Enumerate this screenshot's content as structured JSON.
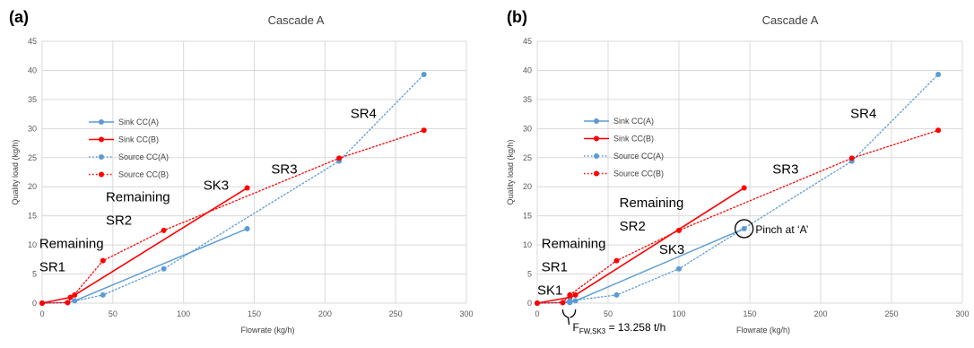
{
  "chart_data": [
    {
      "type": "line",
      "panel_label": "(a)",
      "title": "Cascade A",
      "xlabel": "Flowrate (kg/h)",
      "ylabel": "Quality load (kg/h)",
      "xlim": [
        0,
        300
      ],
      "ylim": [
        0,
        45
      ],
      "xticks": [
        0,
        50,
        100,
        150,
        200,
        250,
        300
      ],
      "yticks": [
        0,
        5,
        10,
        15,
        20,
        25,
        30,
        35,
        40,
        45
      ],
      "grid": true,
      "legend": "left",
      "series": [
        {
          "name": "Sink CC(A)",
          "color": "#5b9bd5",
          "style": "solid",
          "x": [
            0,
            18,
            23,
            145
          ],
          "y": [
            0,
            0.1,
            0.4,
            12.8
          ]
        },
        {
          "name": "Sink CC(B)",
          "color": "#ff0000",
          "style": "solid",
          "x": [
            0,
            20,
            23,
            145
          ],
          "y": [
            0,
            1.0,
            1.4,
            19.8
          ]
        },
        {
          "name": "Source CC(A)",
          "color": "#5b9bd5",
          "style": "dotted",
          "x": [
            0,
            18,
            43,
            86,
            210,
            270
          ],
          "y": [
            0,
            0.1,
            1.4,
            5.9,
            24.4,
            39.3
          ]
        },
        {
          "name": "Source CC(B)",
          "color": "#ff0000",
          "style": "dotted",
          "x": [
            0,
            18,
            43,
            86,
            210,
            270
          ],
          "y": [
            0,
            0.1,
            7.3,
            12.5,
            24.9,
            29.7
          ]
        }
      ],
      "annotations": [
        {
          "id": "r2",
          "text": "Remaining",
          "x": 45,
          "y": 17.5
        },
        {
          "id": "sr2",
          "text": "SR2",
          "x": 45,
          "y": 13.5
        },
        {
          "id": "r1",
          "text": "Remaining",
          "x": -2,
          "y": 9.5
        },
        {
          "id": "sr1",
          "text": "SR1",
          "x": -2,
          "y": 5.5
        },
        {
          "id": "sk3",
          "text": "SK3",
          "x": 114,
          "y": 19.5
        },
        {
          "id": "sr3",
          "text": "SR3",
          "x": 162,
          "y": 22.3
        },
        {
          "id": "sr4",
          "text": "SR4",
          "x": 218,
          "y": 31.8
        }
      ]
    },
    {
      "type": "line",
      "panel_label": "(b)",
      "title": "Cascade A",
      "xlabel": "Flowrate (kg/h)",
      "ylabel": "Quality load (kg/h)",
      "xlim": [
        0,
        300
      ],
      "ylim": [
        0,
        45
      ],
      "xticks": [
        0,
        50,
        100,
        150,
        200,
        250,
        300
      ],
      "yticks": [
        0,
        5,
        10,
        15,
        20,
        25,
        30,
        35,
        40,
        45
      ],
      "grid": true,
      "legend": "left",
      "series": [
        {
          "name": "Sink CC(A)",
          "color": "#5b9bd5",
          "style": "solid",
          "x": [
            0,
            23,
            27,
            146
          ],
          "y": [
            0,
            0.1,
            0.4,
            12.8
          ]
        },
        {
          "name": "Sink CC(B)",
          "color": "#ff0000",
          "style": "solid",
          "x": [
            0,
            23,
            27,
            146
          ],
          "y": [
            0,
            1.0,
            1.4,
            19.8
          ]
        },
        {
          "name": "Source CC(A)",
          "color": "#5b9bd5",
          "style": "dotted",
          "x": [
            0,
            18,
            23,
            56,
            100,
            222,
            283
          ],
          "y": [
            0,
            0.1,
            0.4,
            1.4,
            5.9,
            24.4,
            39.3
          ]
        },
        {
          "name": "Source CC(B)",
          "color": "#ff0000",
          "style": "dotted",
          "x": [
            0,
            18,
            23,
            56,
            100,
            222,
            283
          ],
          "y": [
            0,
            0.1,
            1.4,
            7.3,
            12.5,
            24.9,
            29.7
          ]
        }
      ],
      "annotations": [
        {
          "id": "r2",
          "text": "Remaining",
          "x": 58,
          "y": 16.5
        },
        {
          "id": "sr2",
          "text": "SR2",
          "x": 58,
          "y": 12.5
        },
        {
          "id": "r1",
          "text": "Remaining",
          "x": 3,
          "y": 9.5
        },
        {
          "id": "sr1",
          "text": "SR1",
          "x": 3,
          "y": 5.5
        },
        {
          "id": "sk3",
          "text": "SK3",
          "x": 86,
          "y": 8.5
        },
        {
          "id": "sk1",
          "text": "SK1",
          "x": 0,
          "y": 1.5
        },
        {
          "id": "sr3",
          "text": "SR3",
          "x": 166,
          "y": 22.3
        },
        {
          "id": "sr4",
          "text": "SR4",
          "x": 221,
          "y": 31.8
        },
        {
          "id": "pinch",
          "text": "Pinch at ‘A’",
          "x": 154,
          "y": 12.8
        }
      ],
      "pinch_point": {
        "x": 146,
        "y": 12.8
      },
      "brace_label": {
        "main": "F",
        "subscript": "FW,SK3",
        "value": " = 13.258 t/h",
        "x_from": 18,
        "x_to": 27
      }
    }
  ]
}
